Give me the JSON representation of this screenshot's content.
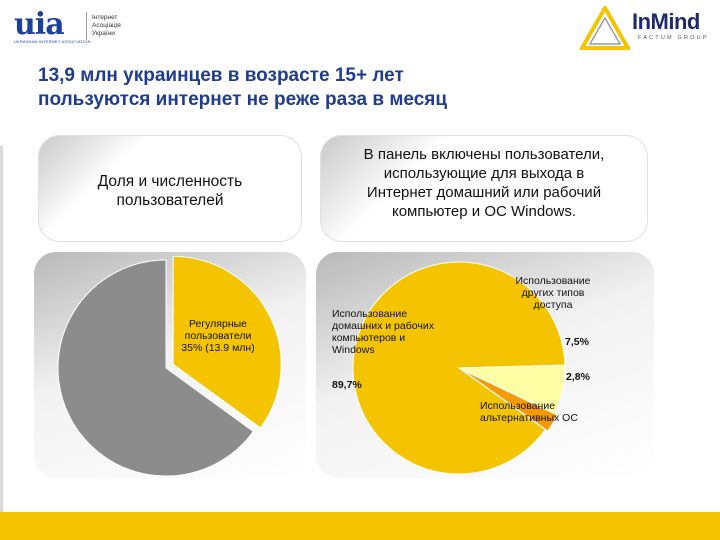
{
  "header": {
    "uia_logo_text": "uia",
    "uia_logo_subtext": "UKRAINIAN INTERNET ASSOCIATION",
    "uia_desc_line1": "Інтернет",
    "uia_desc_line2": "Асоціація",
    "uia_desc_line3": "України",
    "inmind_logo_text": "InMind",
    "inmind_logo_subtext": "FACTUM GROUP"
  },
  "title": {
    "line1": "13,9 млн украинцев в возрасте 15+ лет",
    "line2": "пользуются интернет не реже раза в месяц"
  },
  "panels": {
    "left_heading_line1": "Доля и численность",
    "left_heading_line2": "пользователей",
    "right_heading_line1": "В панель включены пользователи,",
    "right_heading_line2": "использующие для выхода в",
    "right_heading_line3": "Интернет домашний или рабочий",
    "right_heading_line4": "компьютер и ОС Windows."
  },
  "chart_data": [
    {
      "type": "pie",
      "slices": [
        {
          "label": "Регулярные пользователи 35% (13.9 млн)",
          "value": 35,
          "color": "#f5c400"
        },
        {
          "label": "",
          "value": 65,
          "color": "#8c8c8c"
        }
      ],
      "data_labels": {
        "line1": "Регулярные",
        "line2": "пользователи",
        "line3": "35% (13.9 млн)"
      }
    },
    {
      "type": "pie",
      "slices": [
        {
          "label": "Использование домашних и рабочих компьютеров и Windows",
          "value": 89.7,
          "color": "#f5c400"
        },
        {
          "label": "Использование других типов доступа",
          "value": 7.5,
          "color": "#ffffa6"
        },
        {
          "label": "Использование альтернативных ОС",
          "value": 2.8,
          "color": "#f59a00"
        }
      ],
      "data_labels": {
        "main_line1": "Использование",
        "main_line2": "домашних и рабочих",
        "main_line3": "компьютеров и",
        "main_line4": "Windows",
        "main_pct": "89,7%",
        "other_line1": "Использование",
        "other_line2": "других типов",
        "other_line3": "доступа",
        "other_pct": "7,5%",
        "alt_pct": "2,8%",
        "alt_line1": "Использование",
        "alt_line2": "альтернативных ОС"
      }
    }
  ],
  "colors": {
    "accent_yellow": "#f5c400",
    "title_blue": "#1f3c8f",
    "gray_slice": "#8c8c8c"
  }
}
